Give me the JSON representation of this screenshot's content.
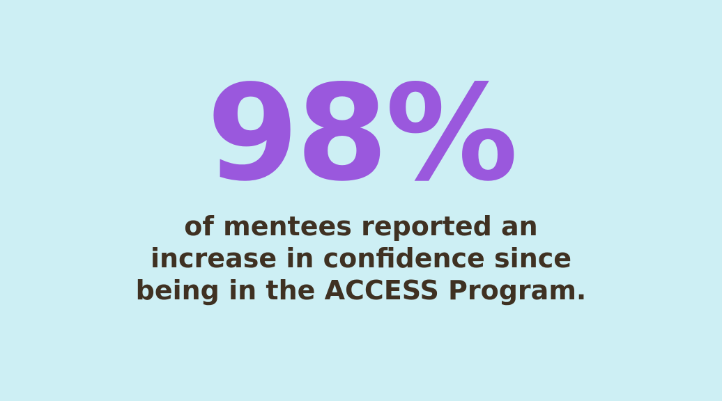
{
  "stat": "98%",
  "description": [
    "of mentees reported an",
    "increase in confidence since",
    "being in the ACCESS Program."
  ]
}
